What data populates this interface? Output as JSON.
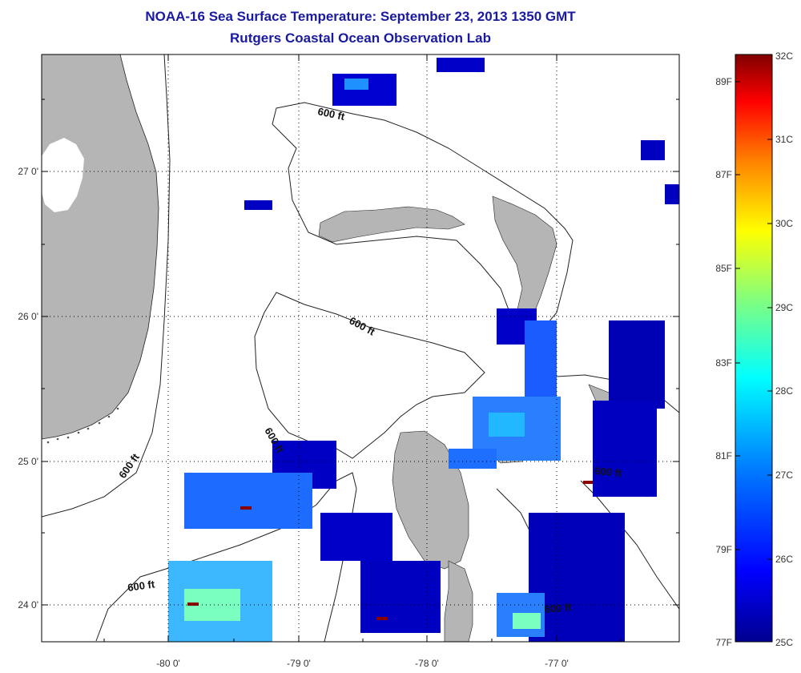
{
  "title": {
    "line1": "NOAA-16 Sea Surface Temperature:  September 23, 2013 1350 GMT",
    "line2": "Rutgers Coastal Ocean Observation Lab"
  },
  "map": {
    "lat_ticks": [
      "27 0'",
      "26 0'",
      "25 0'",
      "24 0'"
    ],
    "lon_ticks": [
      "-80 0'",
      "-79 0'",
      "-78 0'",
      "-77 0'"
    ],
    "contour_labels": [
      "600 ft",
      "600 ft",
      "600 ft",
      "600 ft",
      "600 ft",
      "600 ft",
      "600 ft"
    ]
  },
  "colorbar": {
    "celsius": [
      "32C",
      "31C",
      "30C",
      "29C",
      "28C",
      "27C",
      "26C",
      "25C"
    ],
    "fahrenheit": [
      "89F",
      "87F",
      "85F",
      "83F",
      "81F",
      "79F",
      "77F"
    ],
    "colors": [
      "#00008f",
      "#0000ff",
      "#0080ff",
      "#00ffff",
      "#80ff80",
      "#ffff00",
      "#ff8000",
      "#ff0000",
      "#800000"
    ]
  }
}
